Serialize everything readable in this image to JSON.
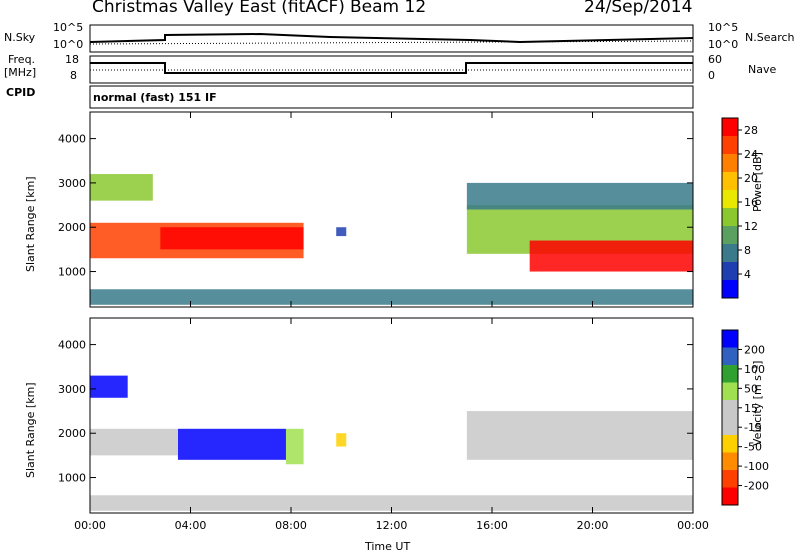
{
  "header": {
    "station": "Christmas Valley East (fitACF)",
    "beam": "Beam 12",
    "date": "24/Sep/2014"
  },
  "noise_panel": {
    "left_label": "N.Sky",
    "left_ticks": [
      "10^5",
      "10^0"
    ],
    "right_label": "N.Search",
    "right_ticks": [
      "10^5",
      "10^0"
    ]
  },
  "freq_panel": {
    "left_label_1": "Freq.",
    "left_label_2": "[MHz]",
    "left_ticks": [
      "18",
      "8"
    ],
    "right_label": "Nave",
    "right_ticks": [
      "60",
      "0"
    ]
  },
  "cpid_panel": {
    "label": "CPID",
    "mode_text": "normal (fast) 151 IF"
  },
  "colors": {
    "power_scale": [
      "#0000ff",
      "#1f3fb0",
      "#3a7a8a",
      "#5aa060",
      "#8bc830",
      "#e8e800",
      "#ffc000",
      "#ff8000",
      "#ff4000",
      "#ff0000"
    ],
    "velocity_scale": [
      "#ff0000",
      "#ff4000",
      "#ff8c00",
      "#ffd000",
      "#c8c8c8",
      "#c8c8c8",
      "#a0e050",
      "#30a030",
      "#3060c0",
      "#0000ff"
    ],
    "ground_scatter": "#c0c0c0"
  },
  "chart_data": [
    {
      "type": "heatmap",
      "title": "",
      "xlabel": "Time UT",
      "ylabel": "Slant Range [km]",
      "x_ticks": [
        "00:00",
        "04:00",
        "08:00",
        "12:00",
        "16:00",
        "20:00",
        "00:00"
      ],
      "y_ticks": [
        "1000",
        "2000",
        "3000",
        "4000"
      ],
      "xlim_hours": [
        0,
        24
      ],
      "ylim": [
        200,
        4600
      ],
      "colorbar": {
        "label": "Power [dB]",
        "ticks": [
          "4",
          "8",
          "12",
          "16",
          "20",
          "24",
          "28"
        ],
        "range": [
          0,
          30
        ]
      },
      "regions": [
        {
          "t0": 0.0,
          "t1": 8.5,
          "r0": 1300,
          "r1": 2100,
          "value": 24
        },
        {
          "t0": 2.8,
          "t1": 8.5,
          "r0": 1500,
          "r1": 2000,
          "value": 28
        },
        {
          "t0": 0.0,
          "t1": 2.5,
          "r0": 2600,
          "r1": 3200,
          "value": 12
        },
        {
          "t0": 15.0,
          "t1": 24.0,
          "r0": 1400,
          "r1": 2500,
          "value": 14
        },
        {
          "t0": 17.5,
          "t1": 24.0,
          "r0": 1000,
          "r1": 1700,
          "value": 28
        },
        {
          "t0": 15.0,
          "t1": 24.0,
          "r0": 2400,
          "r1": 3000,
          "value": 8
        },
        {
          "t0": 9.8,
          "t1": 10.2,
          "r0": 1800,
          "r1": 2000,
          "value": 4
        },
        {
          "t0": 0.0,
          "t1": 24.0,
          "r0": 250,
          "r1": 600,
          "value": 6
        }
      ]
    },
    {
      "type": "heatmap",
      "title": "",
      "xlabel": "Time UT",
      "ylabel": "Slant Range [km]",
      "x_ticks": [
        "00:00",
        "04:00",
        "08:00",
        "12:00",
        "16:00",
        "20:00",
        "00:00"
      ],
      "y_ticks": [
        "1000",
        "2000",
        "3000",
        "4000"
      ],
      "xlim_hours": [
        0,
        24
      ],
      "ylim": [
        200,
        4600
      ],
      "colorbar": {
        "label": "Velocity [m s⁻¹]",
        "ticks": [
          "200",
          "100",
          "50",
          "15",
          "-15",
          "-50",
          "-100",
          "-200"
        ],
        "range": [
          -250,
          250
        ]
      },
      "regions": [
        {
          "t0": 3.5,
          "t1": 7.8,
          "r0": 1400,
          "r1": 2100,
          "value": 220
        },
        {
          "t0": 7.8,
          "t1": 8.5,
          "r0": 1300,
          "r1": 2100,
          "value": 60
        },
        {
          "t0": 0.0,
          "t1": 3.5,
          "r0": 1500,
          "r1": 2100,
          "value": 0
        },
        {
          "t0": 0.0,
          "t1": 1.5,
          "r0": 2800,
          "r1": 3300,
          "value": 220
        },
        {
          "t0": 9.8,
          "t1": 10.2,
          "r0": 1700,
          "r1": 2000,
          "value": -60
        },
        {
          "t0": 15.0,
          "t1": 24.0,
          "r0": 1400,
          "r1": 2500,
          "value": 0
        },
        {
          "t0": 0.0,
          "t1": 24.0,
          "r0": 250,
          "r1": 600,
          "value": -50
        }
      ]
    }
  ]
}
